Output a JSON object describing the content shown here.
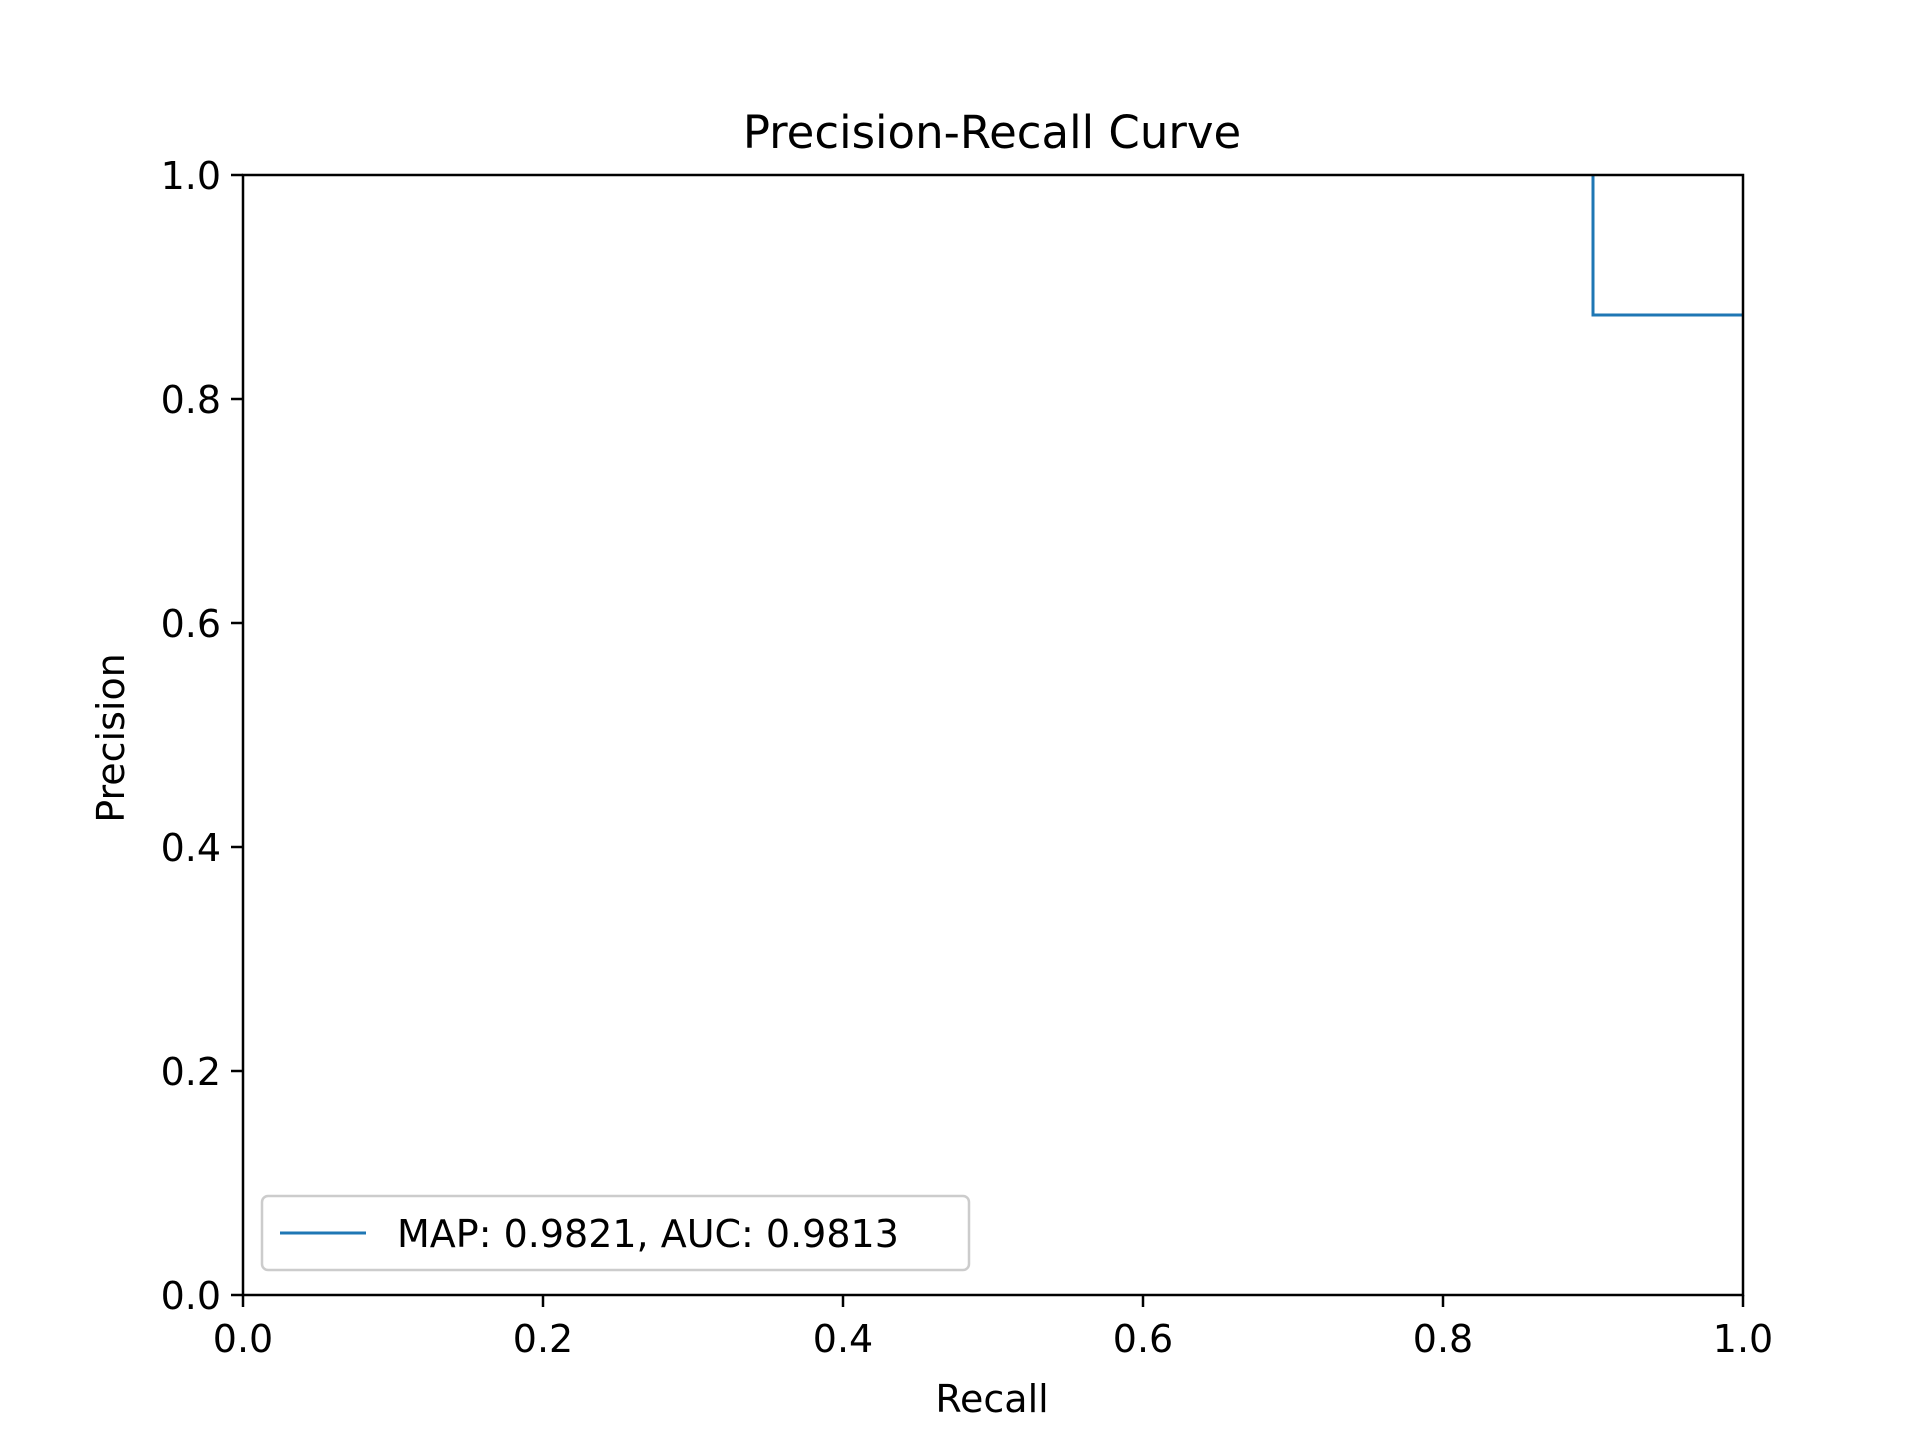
{
  "chart_data": {
    "type": "line",
    "title": "Precision-Recall Curve",
    "xlabel": "Recall",
    "ylabel": "Precision",
    "xlim": [
      0.0,
      1.0
    ],
    "ylim": [
      0.0,
      1.0
    ],
    "xticks": [
      "0.0",
      "0.2",
      "0.4",
      "0.6",
      "0.8",
      "1.0"
    ],
    "yticks": [
      "0.0",
      "0.2",
      "0.4",
      "0.6",
      "0.8",
      "1.0"
    ],
    "grid": false,
    "legend_position": "lower-left",
    "series": [
      {
        "name": "MAP: 0.9821, AUC: 0.9813",
        "color": "#1f77b4",
        "step": true,
        "x": [
          0.9,
          0.9,
          1.0
        ],
        "y": [
          1.0,
          0.875,
          0.875
        ]
      }
    ]
  }
}
